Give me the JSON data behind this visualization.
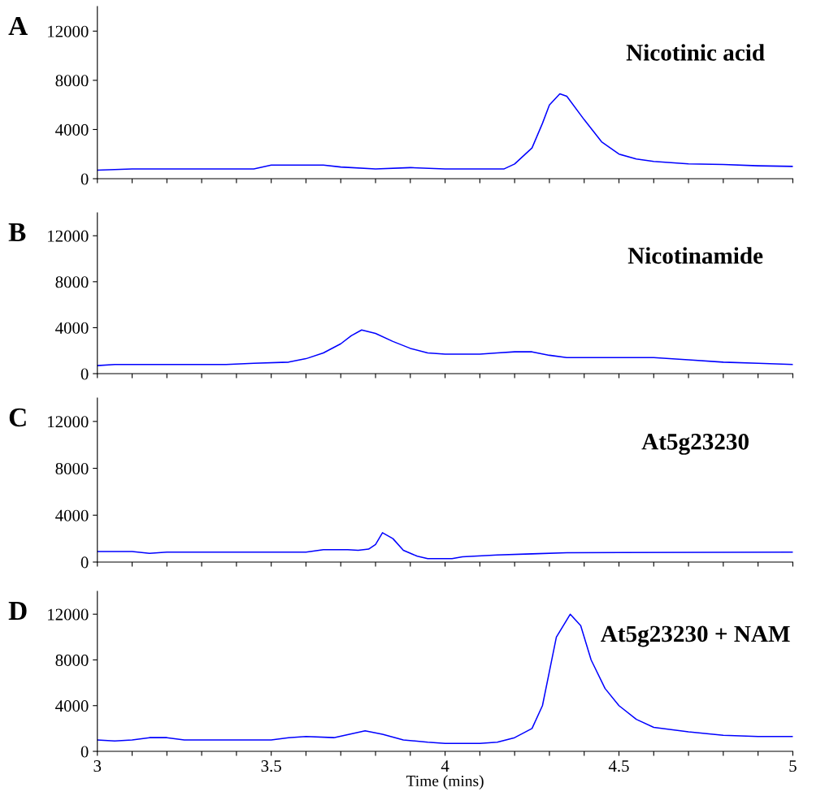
{
  "chart_data": [
    {
      "type": "line",
      "annotations": [
        "A",
        "Nicotinic acid"
      ],
      "tick_labels": "y",
      "xlim": [
        3,
        5
      ],
      "ylim": [
        0,
        14000
      ],
      "yticks": [
        0,
        4000,
        8000,
        12000
      ],
      "xticks": [
        3,
        {
          "value": 3.1,
          "label": null
        },
        {
          "value": 3.2,
          "label": null
        },
        {
          "value": 3.3,
          "label": null
        },
        {
          "value": 3.4,
          "label": null
        },
        3.5,
        {
          "value": 3.6,
          "label": null
        },
        {
          "value": 3.7,
          "label": null
        },
        {
          "value": 3.8,
          "label": null
        },
        {
          "value": 3.9,
          "label": null
        },
        4,
        {
          "value": 4.1,
          "label": null
        },
        {
          "value": 4.2,
          "label": null
        },
        {
          "value": 4.3,
          "label": null
        },
        {
          "value": 4.4,
          "label": null
        },
        4.5,
        {
          "value": 4.6,
          "label": null
        },
        {
          "value": 4.7,
          "label": null
        },
        {
          "value": 4.8,
          "label": null
        },
        {
          "value": 4.9,
          "label": null
        },
        5
      ],
      "series": [
        {
          "color": "#0000ff",
          "x": [
            3,
            3.1,
            3.45,
            3.5,
            3.65,
            3.7,
            3.8,
            3.9,
            4.0,
            4.17,
            4.2,
            4.25,
            4.28,
            4.3,
            4.33,
            4.35,
            4.4,
            4.45,
            4.5,
            4.55,
            4.6,
            4.7,
            4.8,
            4.9,
            5
          ],
          "values": [
            700,
            800,
            800,
            1100,
            1100,
            950,
            800,
            900,
            800,
            800,
            1200,
            2500,
            4500,
            6000,
            6900,
            6700,
            4800,
            3000,
            2000,
            1600,
            1400,
            1200,
            1150,
            1050,
            1000
          ]
        }
      ]
    },
    {
      "type": "line",
      "annotations": [
        "B",
        "Nicotinamide"
      ],
      "tick_labels": "y",
      "xlim": [
        3,
        5
      ],
      "ylim": [
        0,
        14000
      ],
      "yticks": [
        0,
        4000,
        8000,
        12000
      ],
      "xticks": [
        3,
        {
          "value": 3.1,
          "label": null
        },
        {
          "value": 3.2,
          "label": null
        },
        {
          "value": 3.3,
          "label": null
        },
        {
          "value": 3.4,
          "label": null
        },
        3.5,
        {
          "value": 3.6,
          "label": null
        },
        {
          "value": 3.7,
          "label": null
        },
        {
          "value": 3.8,
          "label": null
        },
        {
          "value": 3.9,
          "label": null
        },
        4,
        {
          "value": 4.1,
          "label": null
        },
        {
          "value": 4.2,
          "label": null
        },
        {
          "value": 4.3,
          "label": null
        },
        {
          "value": 4.4,
          "label": null
        },
        4.5,
        {
          "value": 4.6,
          "label": null
        },
        {
          "value": 4.7,
          "label": null
        },
        {
          "value": 4.8,
          "label": null
        },
        {
          "value": 4.9,
          "label": null
        },
        5
      ],
      "series": [
        {
          "color": "#0000ff",
          "x": [
            3,
            3.05,
            3.37,
            3.45,
            3.55,
            3.6,
            3.65,
            3.7,
            3.73,
            3.76,
            3.8,
            3.85,
            3.9,
            3.95,
            4.0,
            4.1,
            4.15,
            4.2,
            4.25,
            4.3,
            4.35,
            4.6,
            4.7,
            4.8,
            4.9,
            5
          ],
          "values": [
            700,
            800,
            800,
            900,
            1000,
            1300,
            1800,
            2600,
            3300,
            3800,
            3500,
            2800,
            2200,
            1800,
            1700,
            1700,
            1800,
            1900,
            1900,
            1600,
            1400,
            1400,
            1200,
            1000,
            900,
            800
          ]
        }
      ]
    },
    {
      "type": "line",
      "annotations": [
        "C",
        "At5g23230"
      ],
      "tick_labels": "y",
      "xlim": [
        3,
        5
      ],
      "ylim": [
        0,
        14000
      ],
      "yticks": [
        0,
        4000,
        8000,
        12000
      ],
      "xticks": [
        3,
        {
          "value": 3.1,
          "label": null
        },
        {
          "value": 3.2,
          "label": null
        },
        {
          "value": 3.3,
          "label": null
        },
        {
          "value": 3.4,
          "label": null
        },
        3.5,
        {
          "value": 3.6,
          "label": null
        },
        {
          "value": 3.7,
          "label": null
        },
        {
          "value": 3.8,
          "label": null
        },
        {
          "value": 3.9,
          "label": null
        },
        4,
        {
          "value": 4.1,
          "label": null
        },
        {
          "value": 4.2,
          "label": null
        },
        {
          "value": 4.3,
          "label": null
        },
        {
          "value": 4.4,
          "label": null
        },
        4.5,
        {
          "value": 4.6,
          "label": null
        },
        {
          "value": 4.7,
          "label": null
        },
        {
          "value": 4.8,
          "label": null
        },
        {
          "value": 4.9,
          "label": null
        },
        5
      ],
      "series": [
        {
          "color": "#0000ff",
          "x": [
            3,
            3.1,
            3.15,
            3.2,
            3.6,
            3.65,
            3.72,
            3.75,
            3.78,
            3.8,
            3.82,
            3.85,
            3.88,
            3.92,
            3.95,
            4.02,
            4.05,
            4.15,
            4.25,
            4.35,
            5
          ],
          "values": [
            900,
            900,
            750,
            850,
            850,
            1050,
            1050,
            1000,
            1100,
            1500,
            2500,
            2000,
            1000,
            500,
            300,
            300,
            450,
            600,
            700,
            800,
            850
          ]
        }
      ]
    },
    {
      "type": "line",
      "annotations": [
        "D",
        "At5g23230 + NAM"
      ],
      "xlabel": "Time (mins)",
      "xlim": [
        3,
        5
      ],
      "ylim": [
        0,
        14000
      ],
      "yticks": [
        0,
        4000,
        8000,
        12000
      ],
      "xticks": [
        3,
        {
          "value": 3.1,
          "label": null
        },
        {
          "value": 3.2,
          "label": null
        },
        {
          "value": 3.3,
          "label": null
        },
        {
          "value": 3.4,
          "label": null
        },
        3.5,
        {
          "value": 3.6,
          "label": null
        },
        {
          "value": 3.7,
          "label": null
        },
        {
          "value": 3.8,
          "label": null
        },
        {
          "value": 3.9,
          "label": null
        },
        4,
        {
          "value": 4.1,
          "label": null
        },
        {
          "value": 4.2,
          "label": null
        },
        {
          "value": 4.3,
          "label": null
        },
        {
          "value": 4.4,
          "label": null
        },
        4.5,
        {
          "value": 4.6,
          "label": null
        },
        {
          "value": 4.7,
          "label": null
        },
        {
          "value": 4.8,
          "label": null
        },
        {
          "value": 4.9,
          "label": null
        },
        5
      ],
      "series": [
        {
          "color": "#0000ff",
          "x": [
            3,
            3.05,
            3.1,
            3.15,
            3.2,
            3.25,
            3.5,
            3.55,
            3.6,
            3.68,
            3.77,
            3.82,
            3.88,
            3.95,
            4.0,
            4.1,
            4.15,
            4.2,
            4.25,
            4.28,
            4.3,
            4.32,
            4.36,
            4.39,
            4.42,
            4.46,
            4.5,
            4.55,
            4.6,
            4.7,
            4.8,
            4.9,
            5
          ],
          "values": [
            1000,
            900,
            1000,
            1200,
            1200,
            1000,
            1000,
            1200,
            1300,
            1200,
            1800,
            1500,
            1000,
            800,
            700,
            700,
            800,
            1200,
            2000,
            4000,
            7000,
            10000,
            12000,
            11000,
            8000,
            5500,
            4000,
            2800,
            2100,
            1700,
            1400,
            1300,
            1300
          ]
        }
      ]
    }
  ]
}
